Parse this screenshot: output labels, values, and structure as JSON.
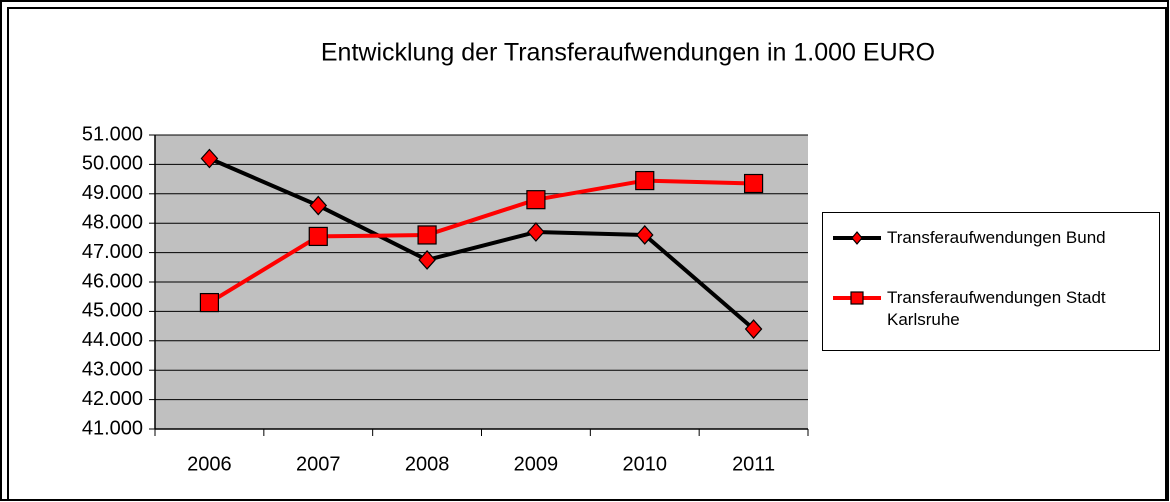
{
  "chart_data": {
    "type": "line",
    "title": "Entwicklung der Transferaufwendungen in 1.000 EURO",
    "categories": [
      "2006",
      "2007",
      "2008",
      "2009",
      "2010",
      "2011"
    ],
    "series": [
      {
        "name": "Transferaufwendungen Bund",
        "color": "#000000",
        "marker": "diamond",
        "values": [
          50200,
          48600,
          46750,
          47700,
          47600,
          44400
        ]
      },
      {
        "name": "Transferaufwendungen Stadt Karlsruhe",
        "color": "#ff0000",
        "marker": "square",
        "values": [
          45300,
          47550,
          47600,
          48800,
          49450,
          49350
        ]
      }
    ],
    "ylim": [
      41000,
      51000
    ],
    "yticks": [
      {
        "value": 41000,
        "label": "41.000"
      },
      {
        "value": 42000,
        "label": "42.000"
      },
      {
        "value": 43000,
        "label": "43.000"
      },
      {
        "value": 44000,
        "label": "44.000"
      },
      {
        "value": 45000,
        "label": "45.000"
      },
      {
        "value": 46000,
        "label": "46.000"
      },
      {
        "value": 47000,
        "label": "47.000"
      },
      {
        "value": 48000,
        "label": "48.000"
      },
      {
        "value": 49000,
        "label": "49.000"
      },
      {
        "value": 50000,
        "label": "50.000"
      },
      {
        "value": 51000,
        "label": "51.000"
      }
    ],
    "grid": true,
    "legend": "right"
  }
}
